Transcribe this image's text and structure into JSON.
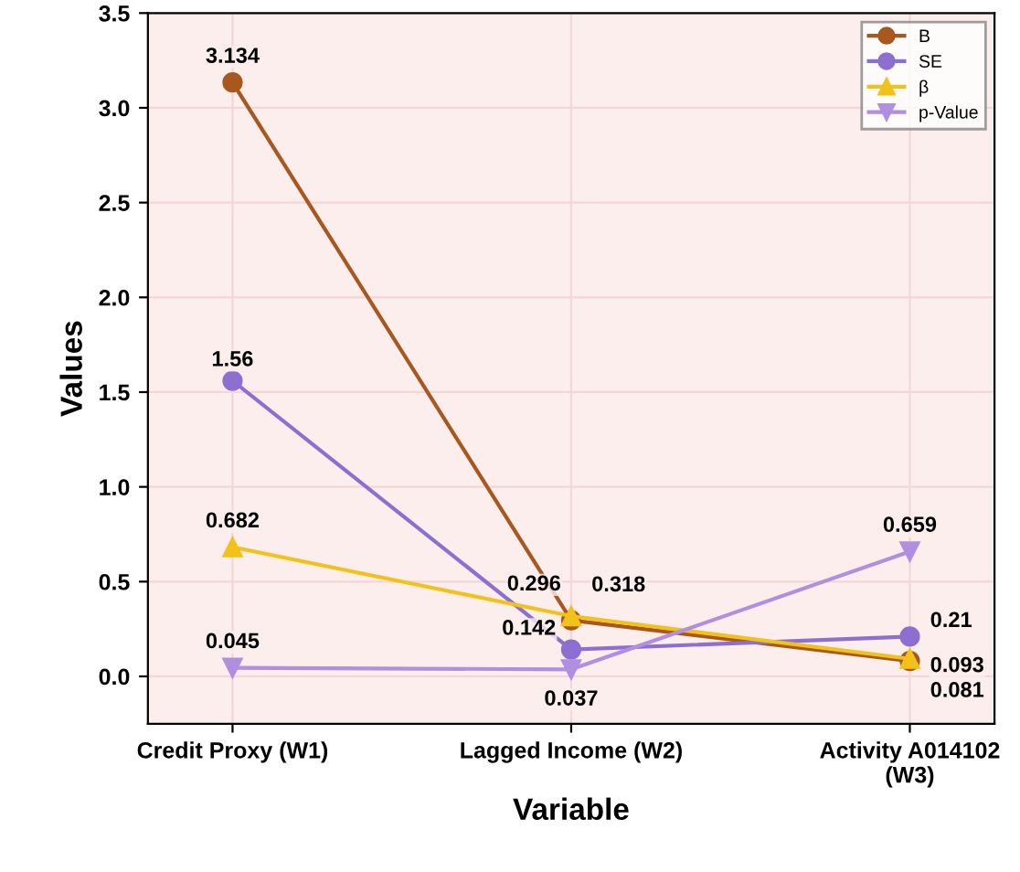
{
  "chart_data": {
    "type": "line",
    "xlabel": "Variable",
    "ylabel": "Values",
    "categories": [
      "Credit Proxy (W1)",
      "Lagged Income (W2)",
      "Activity A014102\n(W3)"
    ],
    "series": [
      {
        "name": "B",
        "color": "#a8581e",
        "marker": "circle",
        "values": [
          3.134,
          0.296,
          0.081
        ]
      },
      {
        "name": "SE",
        "color": "#8c6fd1",
        "marker": "circle",
        "values": [
          1.56,
          0.142,
          0.21
        ]
      },
      {
        "name": "β",
        "color": "#f2c21b",
        "marker": "triangle",
        "values": [
          0.682,
          0.318,
          0.093
        ]
      },
      {
        "name": "p-Value",
        "color": "#b08ee0",
        "marker": "triangle_down",
        "values": [
          0.045,
          0.037,
          0.659
        ]
      }
    ],
    "data_labels": true,
    "ylim": [
      -0.25,
      3.5
    ],
    "yticks": [
      {
        "value": 0,
        "label": "0.0"
      },
      0.5,
      {
        "value": 1,
        "label": "1.0"
      },
      1.5,
      {
        "value": 2,
        "label": "2.0"
      },
      2.5,
      {
        "value": 3,
        "label": "3.0"
      },
      3.5
    ],
    "grid": true,
    "legend": "top right",
    "line_style": "solid"
  }
}
